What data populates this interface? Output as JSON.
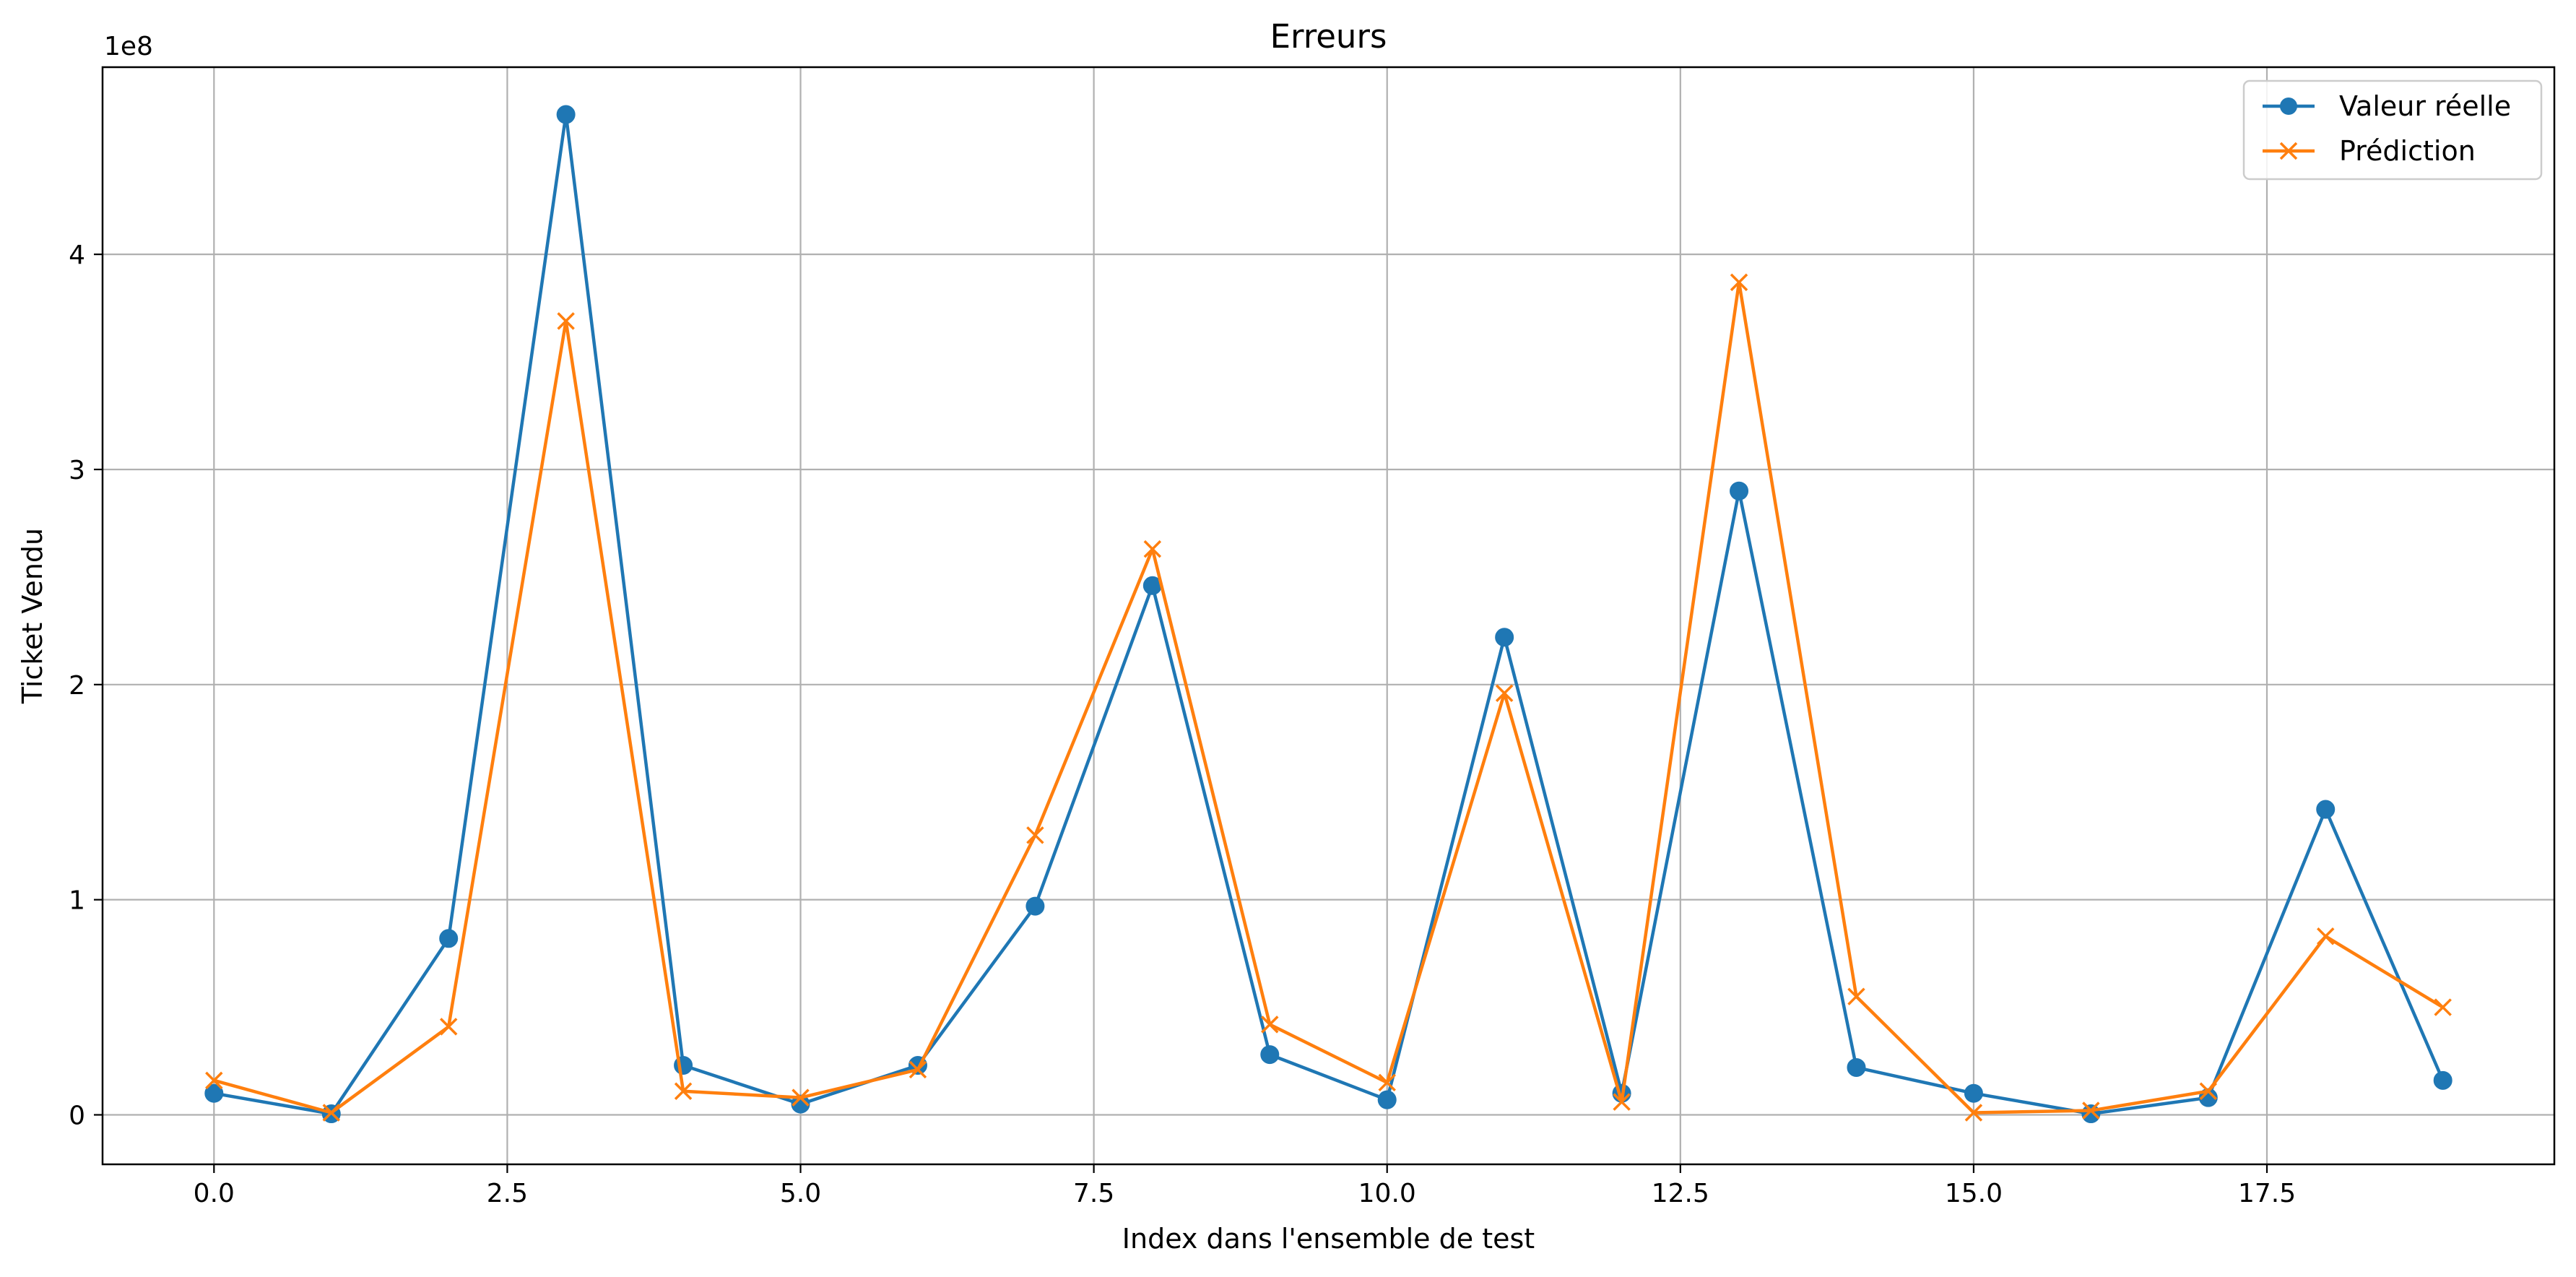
{
  "chart_data": {
    "type": "line",
    "title": "Erreurs",
    "xlabel": "Index dans l'ensemble de test",
    "ylabel": "Ticket Vendu",
    "y_offset_label": "1e8",
    "y_scale": 100000000,
    "x": [
      0,
      1,
      2,
      3,
      4,
      5,
      6,
      7,
      8,
      9,
      10,
      11,
      12,
      13,
      14,
      15,
      16,
      17,
      18,
      19
    ],
    "xlim": [
      -0.95,
      19.95
    ],
    "ylim": [
      -0.23,
      4.87
    ],
    "x_ticks": [
      0.0,
      2.5,
      5.0,
      7.5,
      10.0,
      12.5,
      15.0,
      17.5
    ],
    "x_tick_labels": [
      "0.0",
      "2.5",
      "5.0",
      "7.5",
      "10.0",
      "12.5",
      "15.0",
      "17.5"
    ],
    "y_ticks": [
      0,
      1,
      2,
      3,
      4
    ],
    "y_tick_labels": [
      "0",
      "1",
      "2",
      "3",
      "4"
    ],
    "grid": true,
    "legend_position": "top-right",
    "series": [
      {
        "name": "Valeur réelle",
        "color": "#1f77b4",
        "marker": "circle",
        "values": [
          0.1,
          0.005,
          0.82,
          4.65,
          0.23,
          0.05,
          0.23,
          0.97,
          2.46,
          0.28,
          0.07,
          2.22,
          0.1,
          2.9,
          0.22,
          0.1,
          0.005,
          0.08,
          1.42,
          0.16
        ]
      },
      {
        "name": "Prédiction",
        "color": "#ff7f0e",
        "marker": "x",
        "values": [
          0.16,
          0.01,
          0.41,
          3.69,
          0.11,
          0.08,
          0.21,
          1.3,
          2.63,
          0.42,
          0.15,
          1.96,
          0.06,
          3.87,
          0.55,
          0.01,
          0.02,
          0.11,
          0.83,
          0.5
        ]
      }
    ]
  }
}
